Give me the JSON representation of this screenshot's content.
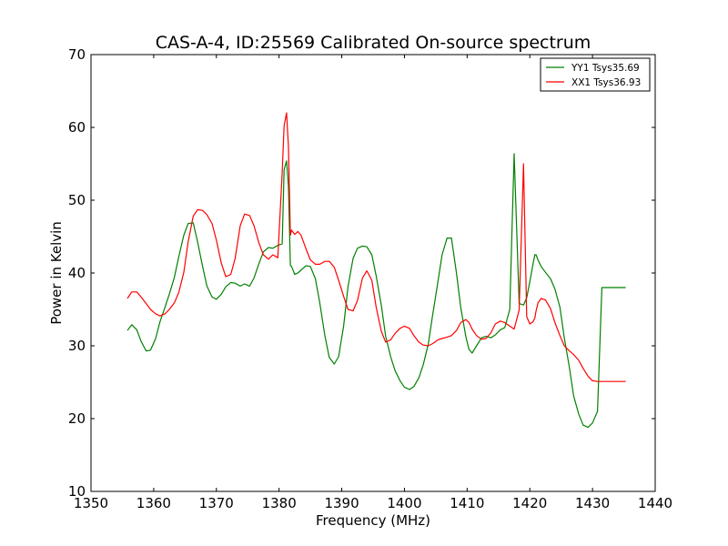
{
  "chart_data": {
    "type": "line",
    "title": "CAS-A-4, ID:25569 Calibrated On-source spectrum",
    "xlabel": "Frequency (MHz)",
    "ylabel": "Power in Kelvin",
    "xlim": [
      1350,
      1440
    ],
    "ylim": [
      10,
      70
    ],
    "xticks": [
      "1350",
      "1360",
      "1370",
      "1380",
      "1390",
      "1400",
      "1410",
      "1420",
      "1430",
      "1440"
    ],
    "yticks": [
      "10",
      "20",
      "30",
      "40",
      "50",
      "60",
      "70"
    ],
    "grid": false,
    "legend_position": "top-right",
    "series": [
      {
        "name": "YY1 Tsys35.69",
        "color": "#008000",
        "x": [
          1355.8,
          1356.5,
          1357.3,
          1358.0,
          1358.8,
          1359.5,
          1360.3,
          1361.0,
          1361.8,
          1362.5,
          1363.3,
          1364.0,
          1364.8,
          1365.5,
          1366.3,
          1367.0,
          1367.8,
          1368.5,
          1369.3,
          1370.0,
          1370.8,
          1371.5,
          1372.3,
          1373.0,
          1373.8,
          1374.5,
          1375.3,
          1376.0,
          1376.8,
          1377.5,
          1378.3,
          1379.0,
          1379.8,
          1380.5,
          1380.8,
          1381.2,
          1381.5,
          1381.8,
          1382.0,
          1382.5,
          1383.0,
          1383.5,
          1384.3,
          1385.0,
          1385.8,
          1386.5,
          1387.3,
          1388.0,
          1388.8,
          1389.5,
          1390.3,
          1391.0,
          1391.8,
          1392.5,
          1393.3,
          1394.0,
          1394.8,
          1395.5,
          1396.3,
          1397.0,
          1397.8,
          1398.5,
          1399.3,
          1400.0,
          1400.8,
          1401.5,
          1402.3,
          1403.0,
          1403.8,
          1404.5,
          1405.3,
          1406.0,
          1406.8,
          1407.5,
          1408.3,
          1409.0,
          1409.8,
          1410.3,
          1410.8,
          1411.5,
          1412.3,
          1413.0,
          1413.8,
          1414.5,
          1415.3,
          1416.0,
          1416.8,
          1417.5,
          1418.3,
          1419.0,
          1419.5,
          1420.0,
          1420.5,
          1420.8,
          1421.0,
          1421.3,
          1421.8,
          1422.5,
          1423.3,
          1424.0,
          1424.8,
          1425.5,
          1426.3,
          1427.0,
          1427.8,
          1428.5,
          1429.3,
          1430.0,
          1430.8,
          1431.5,
          1432.3,
          1433.0,
          1433.8,
          1434.5,
          1435.3
        ],
        "y": [
          32.1,
          32.9,
          32.2,
          30.6,
          29.3,
          29.4,
          31.0,
          33.3,
          35.3,
          37.1,
          39.4,
          42.2,
          45.2,
          46.8,
          46.9,
          44.3,
          40.9,
          38.2,
          36.7,
          36.4,
          37.1,
          38.1,
          38.7,
          38.6,
          38.2,
          38.5,
          38.2,
          39.3,
          41.3,
          42.9,
          43.5,
          43.4,
          43.8,
          44.0,
          54.2,
          55.4,
          51.9,
          41.0,
          40.9,
          39.8,
          40.0,
          40.4,
          41.0,
          40.9,
          39.2,
          35.9,
          31.4,
          28.4,
          27.5,
          28.5,
          32.7,
          38.1,
          42.0,
          43.4,
          43.7,
          43.6,
          42.5,
          39.6,
          35.6,
          31.3,
          28.5,
          26.6,
          25.2,
          24.3,
          24.0,
          24.4,
          25.6,
          27.4,
          30.2,
          34.2,
          38.6,
          42.5,
          44.8,
          44.8,
          40.0,
          35.2,
          31.2,
          29.5,
          29.0,
          30.0,
          31.1,
          31.3,
          31.1,
          31.5,
          32.2,
          32.5,
          35.0,
          56.4,
          35.8,
          35.6,
          36.6,
          38.8,
          41.2,
          42.5,
          42.5,
          41.8,
          40.9,
          40.1,
          39.2,
          37.8,
          35.3,
          31.1,
          27.1,
          23.1,
          20.6,
          19.1,
          18.8,
          19.4,
          21.0,
          38.0,
          38.0,
          38.0,
          38.0,
          38.0,
          38.0
        ]
      },
      {
        "name": "XX1 Tsys36.93",
        "color": "#ff0000",
        "x": [
          1355.8,
          1356.5,
          1357.3,
          1358.0,
          1358.8,
          1359.5,
          1360.3,
          1361.0,
          1361.8,
          1362.5,
          1363.3,
          1364.0,
          1364.8,
          1365.5,
          1366.3,
          1367.0,
          1367.8,
          1368.5,
          1369.3,
          1370.0,
          1370.8,
          1371.5,
          1372.3,
          1373.0,
          1373.8,
          1374.5,
          1375.3,
          1376.0,
          1376.8,
          1377.5,
          1378.3,
          1379.0,
          1379.8,
          1380.5,
          1380.8,
          1381.2,
          1381.5,
          1381.8,
          1382.0,
          1382.5,
          1383.0,
          1383.5,
          1384.3,
          1385.0,
          1385.8,
          1386.5,
          1387.3,
          1388.0,
          1388.8,
          1389.5,
          1390.3,
          1391.0,
          1391.8,
          1392.5,
          1393.3,
          1394.0,
          1394.8,
          1395.5,
          1396.3,
          1397.0,
          1397.8,
          1398.5,
          1399.3,
          1400.0,
          1400.8,
          1401.5,
          1402.3,
          1403.0,
          1403.8,
          1404.5,
          1405.3,
          1406.0,
          1406.8,
          1407.5,
          1408.3,
          1409.0,
          1409.8,
          1410.3,
          1410.8,
          1411.5,
          1412.3,
          1413.0,
          1413.8,
          1414.5,
          1415.3,
          1416.0,
          1416.8,
          1417.5,
          1418.3,
          1419.0,
          1419.5,
          1420.0,
          1420.5,
          1420.8,
          1421.0,
          1421.3,
          1421.8,
          1422.5,
          1423.3,
          1424.0,
          1424.8,
          1425.5,
          1426.3,
          1427.0,
          1427.8,
          1428.5,
          1429.3,
          1430.0,
          1430.8,
          1431.5,
          1432.3,
          1433.0,
          1433.8,
          1434.5,
          1435.3
        ],
        "y": [
          36.5,
          37.4,
          37.4,
          36.7,
          35.8,
          35.0,
          34.4,
          34.1,
          34.4,
          35.0,
          35.9,
          37.3,
          40.1,
          44.3,
          47.8,
          48.7,
          48.6,
          48.0,
          46.8,
          44.5,
          41.3,
          39.5,
          39.8,
          42.0,
          46.5,
          48.1,
          47.9,
          46.5,
          44.1,
          42.5,
          41.9,
          42.5,
          42.1,
          53.8,
          60.2,
          62.0,
          57.3,
          45.2,
          45.9,
          45.3,
          45.7,
          45.2,
          43.3,
          41.8,
          41.2,
          41.2,
          41.6,
          41.6,
          40.8,
          39.0,
          36.8,
          35.0,
          34.8,
          36.2,
          39.3,
          40.3,
          39.0,
          35.3,
          32.0,
          30.5,
          30.8,
          31.7,
          32.4,
          32.7,
          32.4,
          31.4,
          30.5,
          30.1,
          30.0,
          30.3,
          30.8,
          31.0,
          31.2,
          31.4,
          32.1,
          33.2,
          33.6,
          33.2,
          32.3,
          31.4,
          30.9,
          31.0,
          31.8,
          33.0,
          33.4,
          33.2,
          32.7,
          32.3,
          34.9,
          55.0,
          34.0,
          33.0,
          33.3,
          33.8,
          34.8,
          35.9,
          36.5,
          36.3,
          35.1,
          33.2,
          31.4,
          30.0,
          29.3,
          28.8,
          28.0,
          26.9,
          25.8,
          25.2,
          25.1,
          25.1,
          25.1,
          25.1,
          25.1,
          25.1,
          25.1
        ]
      }
    ]
  }
}
